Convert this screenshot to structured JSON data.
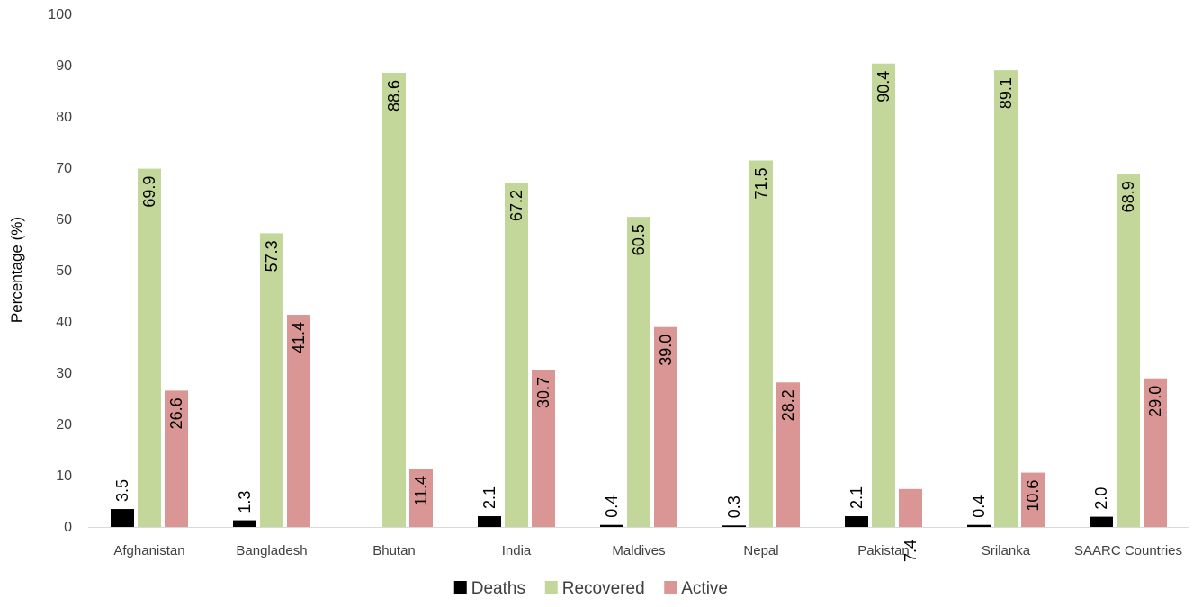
{
  "chart_data": {
    "type": "bar",
    "title": "",
    "xlabel": "",
    "ylabel": "Percentage (%)",
    "ylim": [
      0,
      100
    ],
    "yticks": [
      0,
      10,
      20,
      30,
      40,
      50,
      60,
      70,
      80,
      90,
      100
    ],
    "grid": false,
    "legend_position": "bottom",
    "categories": [
      "Afghanistan",
      "Bangladesh",
      "Bhutan",
      "India",
      "Maldives",
      "Nepal",
      "Pakistan",
      "Srilanka",
      "SAARC Countries"
    ],
    "series": [
      {
        "name": "Deaths",
        "color": "#000000",
        "values": [
          3.5,
          1.3,
          0,
          2.1,
          0.4,
          0.3,
          2.1,
          0.4,
          2.0
        ],
        "labels": [
          "3.5",
          "1.3",
          "",
          "2.1",
          "0.4",
          "0.3",
          "2.1",
          "0.4",
          "2.0"
        ]
      },
      {
        "name": "Recovered",
        "color": "#c4d79b",
        "values": [
          69.9,
          57.3,
          88.6,
          67.2,
          60.5,
          71.5,
          90.4,
          89.1,
          68.9
        ],
        "labels": [
          "69.9",
          "57.3",
          "88.6",
          "67.2",
          "60.5",
          "71.5",
          "90.4",
          "89.1",
          "68.9"
        ]
      },
      {
        "name": "Active",
        "color": "#da9694",
        "values": [
          26.6,
          41.4,
          11.4,
          30.7,
          39.0,
          28.2,
          7.4,
          10.6,
          29.0
        ],
        "labels": [
          "26.6",
          "41.4",
          "11.4",
          "30.7",
          "39.0",
          "28.2",
          "7.4",
          "10.6",
          "29.0"
        ]
      }
    ]
  }
}
